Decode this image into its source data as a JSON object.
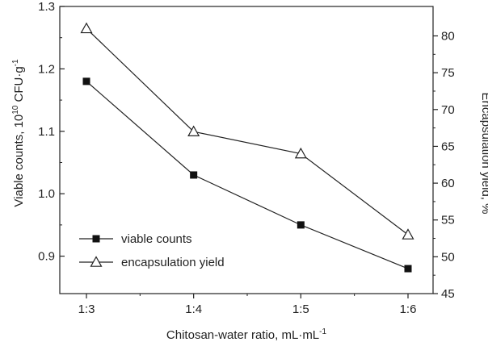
{
  "chart_data": {
    "type": "line",
    "categories": [
      "1:3",
      "1:4",
      "1:5",
      "1:6"
    ],
    "xlabel": {
      "main": "Chitosan-water ratio, mL·mL",
      "sup": "-1"
    },
    "ylabel_left": {
      "main": "Viable counts, 10",
      "sup1": "10",
      "mid": " CFU·g",
      "sup2": "-1"
    },
    "ylabel_right": "Encapsulation yield, %",
    "y_left": {
      "min": 0.84,
      "max": 1.3,
      "ticks": [
        0.9,
        1.0,
        1.1,
        1.2,
        1.3
      ],
      "tick_labels": [
        "0.9",
        "1.0",
        "1.1",
        "1.2",
        "1.3"
      ]
    },
    "y_right": {
      "min": 45,
      "max": 84,
      "ticks": [
        45,
        50,
        55,
        60,
        65,
        70,
        75,
        80
      ],
      "tick_labels": [
        "45",
        "50",
        "55",
        "60",
        "65",
        "70",
        "75",
        "80"
      ]
    },
    "series": [
      {
        "name": "viable counts",
        "axis": "left",
        "marker": "filled-square",
        "values": [
          1.18,
          1.03,
          0.95,
          0.88
        ]
      },
      {
        "name": "encapsulation yield",
        "axis": "right",
        "marker": "open-triangle",
        "values": [
          81,
          67,
          64,
          53
        ]
      }
    ],
    "legend_position": "bottom-left",
    "grid": false
  }
}
